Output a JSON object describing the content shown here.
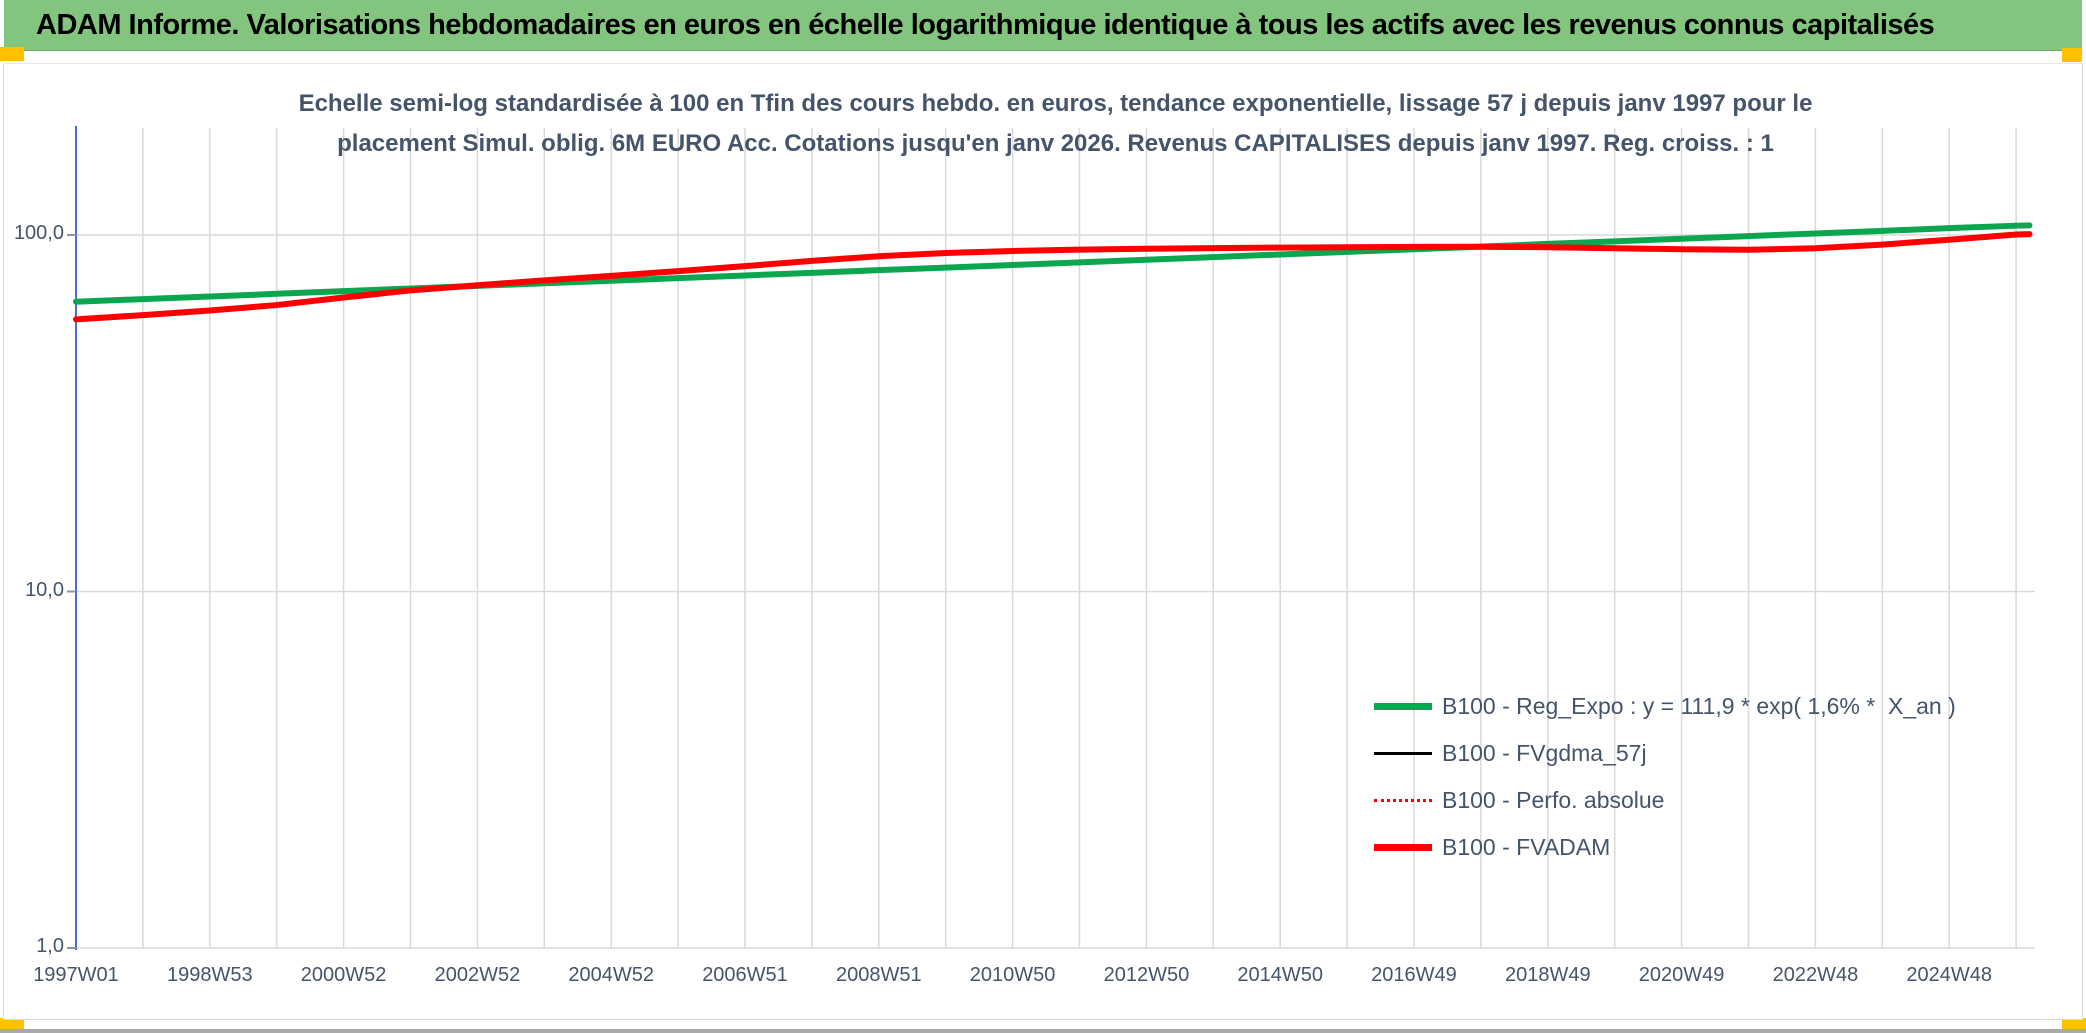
{
  "header": {
    "title": "ADAM Informe. Valorisations hebdomadaires en euros en échelle logarithmique identique à tous les actifs avec les revenus connus capitalisés"
  },
  "chart": {
    "subtitle_line1": "Echelle semi-log standardisée à 100 en Tfin des cours hebdo. en euros, tendance exponentielle, lissage 57 j depuis janv 1997 pour le",
    "subtitle_line2": "placement Simul. oblig. 6M EURO Acc. Cotations jusqu'en janv 2026. Revenus CAPITALISES depuis janv 1997. Reg. croiss. : 1",
    "legend": [
      {
        "label": "B100 - Reg_Expo : y = 111,9 * exp( 1,6% *  X_an )",
        "color": "#0CA64F",
        "line_style": "solid",
        "thickness": "thick"
      },
      {
        "label": "B100 - FVgdma_57j",
        "color": "#000000",
        "line_style": "solid",
        "thickness": "thin"
      },
      {
        "label": "B100 - Perfo. absolue",
        "color": "#FE0000",
        "line_style": "dotted",
        "thickness": "thin"
      },
      {
        "label": "B100 - FVADAM",
        "color": "#FE0000",
        "line_style": "solid",
        "thickness": "thick"
      }
    ]
  },
  "chart_data": {
    "type": "line",
    "title": "Echelle semi-log standardisée à 100 en Tfin des cours hebdo. en euros, tendance exponentielle, lissage 57 j depuis janv 1997 pour le placement Simul. oblig. 6M EURO Acc. Cotations jusqu'en janv 2026. Revenus CAPITALISES depuis janv 1997. Reg. croiss. : 1",
    "x": [
      1997,
      1998,
      1999,
      2000,
      2001,
      2002,
      2003,
      2004,
      2005,
      2006,
      2007,
      2008,
      2009,
      2010,
      2011,
      2012,
      2013,
      2014,
      2015,
      2016,
      2017,
      2018,
      2019,
      2020,
      2021,
      2022,
      2023,
      2024,
      2025,
      2026,
      2026.2
    ],
    "series": [
      {
        "name": "B100 - Reg_Expo : y = 111,9 * exp( 1,6% *  X_an )",
        "color": "#0CA64F",
        "style": "solid",
        "width": 6,
        "values": [
          65.0,
          66.1,
          67.2,
          68.4,
          69.6,
          70.8,
          72.0,
          73.2,
          74.4,
          75.7,
          77.0,
          78.3,
          79.7,
          81.0,
          82.4,
          83.8,
          85.2,
          86.7,
          88.2,
          89.7,
          91.2,
          92.8,
          94.4,
          96.0,
          97.6,
          99.3,
          101.0,
          102.7,
          104.5,
          106.2,
          106.4
        ]
      },
      {
        "name": "B100 - FVgdma_57j",
        "color": "#000000",
        "style": "solid",
        "width": 3,
        "values": [
          58.0,
          59.6,
          61.4,
          63.6,
          66.8,
          69.9,
          72.3,
          74.6,
          76.8,
          79.2,
          81.8,
          84.6,
          87.2,
          89.0,
          90.2,
          91.0,
          91.5,
          91.9,
          92.2,
          92.4,
          92.6,
          92.7,
          92.4,
          91.8,
          91.2,
          90.9,
          91.8,
          94.0,
          97.0,
          100.3,
          100.6
        ]
      },
      {
        "name": "B100 - Perfo. absolue",
        "color": "#FE0000",
        "style": "dotted",
        "width": 2.5,
        "values": [
          58.0,
          59.6,
          61.4,
          63.6,
          66.8,
          69.9,
          72.3,
          74.6,
          76.8,
          79.2,
          81.8,
          84.6,
          87.2,
          89.0,
          90.2,
          91.0,
          91.5,
          91.9,
          92.2,
          92.4,
          92.6,
          92.7,
          92.4,
          91.8,
          91.2,
          90.9,
          91.8,
          94.0,
          97.0,
          100.3,
          100.6
        ]
      },
      {
        "name": "B100 - FVADAM",
        "color": "#FE0000",
        "style": "solid",
        "width": 6,
        "values": [
          58.0,
          59.6,
          61.4,
          63.6,
          66.8,
          69.9,
          72.3,
          74.6,
          76.8,
          79.2,
          81.8,
          84.6,
          87.2,
          89.0,
          90.2,
          91.0,
          91.5,
          91.9,
          92.2,
          92.4,
          92.6,
          92.7,
          92.4,
          91.8,
          91.2,
          90.9,
          91.8,
          94.0,
          97.0,
          100.3,
          100.6
        ]
      }
    ],
    "y_axis": {
      "scale": "log",
      "min": 1,
      "max": 200,
      "tick_values": [
        100,
        10,
        1
      ],
      "tick_labels": [
        "100,0",
        "10,0",
        "1,0"
      ],
      "grid": true
    },
    "x_axis": {
      "gridline_interval_years": 1,
      "tick_years": [
        1997,
        1999,
        2001,
        2003,
        2005,
        2007,
        2009,
        2011,
        2013,
        2015,
        2017,
        2019,
        2021,
        2023,
        2025
      ],
      "tick_labels": [
        "1997W01",
        "1998W53",
        "2000W52",
        "2002W52",
        "2004W52",
        "2006W51",
        "2008W51",
        "2010W50",
        "2012W50",
        "2014W50",
        "2016W49",
        "2018W49",
        "2020W49",
        "2022W48",
        "2024W48"
      ]
    },
    "legend_position": "inside-right"
  },
  "colors": {
    "title_bar_bg": "#83C57E",
    "corner_marker": "#FFC000",
    "subtitle_text": "#44546A",
    "axis_text": "#44546A",
    "gridline": "#D9D9D9",
    "y_axis_line": "#4472C4",
    "bottom_strip": "#A9A9A9"
  }
}
